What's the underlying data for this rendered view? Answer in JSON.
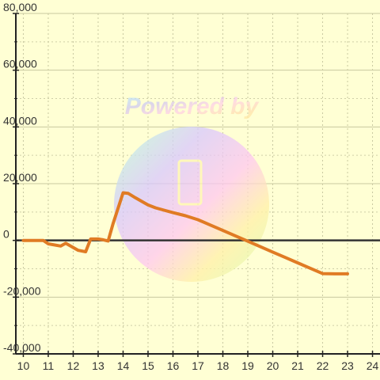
{
  "chart_data": {
    "type": "line",
    "x": [
      10,
      10.5,
      10.8,
      11,
      11.5,
      11.7,
      12.2,
      12.5,
      12.7,
      13,
      13.2,
      13.4,
      13.6,
      14,
      14.2,
      14.5,
      15,
      15.3,
      15.7,
      16,
      16.5,
      17,
      17.5,
      18,
      18.5,
      19,
      19.5,
      20,
      20.5,
      21,
      21.5,
      22,
      22.5,
      23
    ],
    "series": [
      {
        "values": [
          0,
          0,
          0,
          -1200,
          -2000,
          -1000,
          -3500,
          -4000,
          500,
          500,
          200,
          -200,
          6000,
          16800,
          16600,
          15000,
          12500,
          11500,
          10500,
          9800,
          8700,
          7300,
          5400,
          3500,
          1600,
          -300,
          -2200,
          -4100,
          -6000,
          -7900,
          -9800,
          -11700,
          -11800,
          -11800
        ],
        "color": "#e07b24"
      }
    ],
    "x_ticks": [
      "10",
      "11",
      "12",
      "13",
      "14",
      "15",
      "16",
      "17",
      "18",
      "19",
      "20",
      "21",
      "22",
      "23",
      "24"
    ],
    "y_ticks": [
      "80,000",
      "60,000",
      "40,000",
      "20,000",
      "0",
      "-20,000",
      "-40,000"
    ],
    "xlim": [
      9.7,
      24.3
    ],
    "ylim": [
      -40000,
      80000
    ],
    "grid": true,
    "background": "#ffffd4",
    "watermark": "Powered by"
  }
}
